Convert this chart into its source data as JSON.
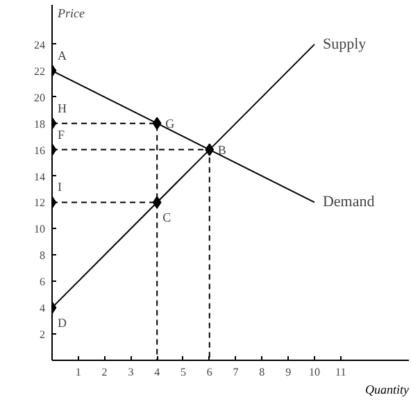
{
  "chart_data": {
    "type": "line",
    "xlabel": "Quantity",
    "ylabel": "Price",
    "xlim": [
      0,
      13.6
    ],
    "ylim": [
      0,
      27
    ],
    "xticks": [
      1,
      2,
      3,
      4,
      5,
      6,
      7,
      8,
      9,
      10,
      11
    ],
    "yticks": [
      2,
      4,
      6,
      8,
      10,
      12,
      14,
      16,
      18,
      20,
      22,
      24
    ],
    "grid": false,
    "legend": false,
    "series": [
      {
        "name": "Supply",
        "color": "#000000",
        "x": [
          0,
          4,
          6,
          10
        ],
        "values": [
          4,
          12,
          16,
          24
        ]
      },
      {
        "name": "Demand",
        "color": "#000000",
        "x": [
          0,
          4,
          6,
          10
        ],
        "values": [
          22,
          18,
          16,
          12
        ]
      },
      {
        "type": "line",
        "line_style": "dashed",
        "color": "#000000",
        "x": [
          0,
          4,
          4
        ],
        "values": [
          18,
          18,
          0
        ]
      },
      {
        "type": "line",
        "line_style": "dashed",
        "color": "#000000",
        "x": [
          0,
          4
        ],
        "values": [
          12,
          12
        ]
      },
      {
        "type": "line",
        "line_style": "dashed",
        "color": "#000000",
        "x": [
          0,
          6,
          6
        ],
        "values": [
          16,
          16,
          0
        ]
      },
      {
        "type": "scatter",
        "marker": "diamond",
        "color": "#000000",
        "x": [
          0,
          0,
          0,
          0,
          0,
          4,
          6,
          4
        ],
        "values": [
          22,
          18,
          16,
          12,
          4,
          18,
          16,
          12
        ]
      }
    ],
    "annotations": [
      {
        "text": "A",
        "x": 0,
        "y": 22
      },
      {
        "text": "H",
        "x": 0,
        "y": 18
      },
      {
        "text": "F",
        "x": 0,
        "y": 16
      },
      {
        "text": "I",
        "x": 0,
        "y": 12
      },
      {
        "text": "D",
        "x": 0,
        "y": 4
      },
      {
        "text": "G",
        "x": 4,
        "y": 18
      },
      {
        "text": "B",
        "x": 6,
        "y": 16
      },
      {
        "text": "C",
        "x": 4,
        "y": 12
      }
    ]
  }
}
